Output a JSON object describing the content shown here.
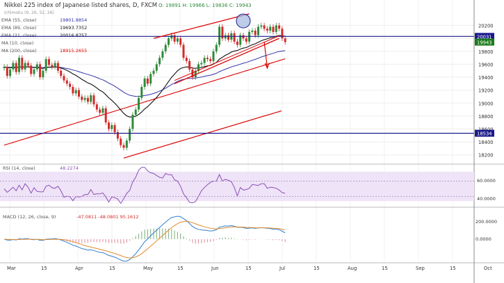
{
  "header": {
    "title": "Nikkei 225 index of Japanese listed shares, D, FXCM",
    "ohlc": "O: 19891 H: 19966 L: 19836 C: 19943",
    "series_label": "Ichimoku (9, 26, 52, 26)"
  },
  "indicators": [
    {
      "label": "EMA (55, close)",
      "value": "19801.8854",
      "color": "#3333aa"
    },
    {
      "label": "EMA (89, close)",
      "value": "19693.7352",
      "color": "#1a1a1a"
    },
    {
      "label": "EMA (21, close)",
      "value": "20016.8757",
      "color": "#111111"
    },
    {
      "label": "MA (10, close)",
      "value": "",
      "color": "#999999"
    },
    {
      "label": "MA (200, close)",
      "value": "18915.2655",
      "color": "#dd0000"
    }
  ],
  "price_axis": {
    "ticks": [
      "20200",
      "20000",
      "19800",
      "19600",
      "19400",
      "19200",
      "19000",
      "18800",
      "18600",
      "18400",
      "18200"
    ],
    "price_labels": [
      {
        "value": "20031",
        "bg": "#1a1a8c",
        "fg": "#ffffff"
      },
      {
        "value": "19943",
        "bg": "#1a7a1a",
        "fg": "#ffffff"
      },
      {
        "value": "18534",
        "bg": "#1a1a8c",
        "fg": "#ffffff"
      }
    ]
  },
  "rsi": {
    "label": "RSI (14, close)",
    "value": "48.2274",
    "ticks": [
      "60.0000",
      "40.0000"
    ]
  },
  "macd": {
    "label": "MACD (12, 26, close, 9)",
    "values": "-47.0811  -48.0801  95.1612",
    "ticks": [
      "200.0000",
      "0.0000"
    ]
  },
  "time_axis": [
    "Mar",
    "15",
    "Apr",
    "15",
    "May",
    "15",
    "Jun",
    "15",
    "Jul",
    "15",
    "Aug",
    "15",
    "Sep",
    "15",
    "Oct"
  ],
  "colors": {
    "up": "#2e8b3a",
    "down": "#d42a2a",
    "hline": "#1a1a8c",
    "rsi_band": "#efe3f7"
  },
  "chart_data": {
    "type": "candlestick",
    "title": "Nikkei 225 index of Japanese listed shares, D, FXCM",
    "ylim": [
      18100,
      20400
    ],
    "horizontal_levels": [
      20031,
      18534
    ],
    "close": [
      19560,
      19420,
      19520,
      19620,
      19480,
      19700,
      19520,
      19620,
      19580,
      19450,
      19520,
      19600,
      19400,
      19500,
      19680,
      19590,
      19560,
      19620,
      19500,
      19420,
      19350,
      19300,
      19250,
      19150,
      19200,
      19100,
      19050,
      19080,
      19020,
      19120,
      18980,
      18900,
      18850,
      18920,
      18700,
      18600,
      18660,
      18550,
      18450,
      18350,
      18310,
      18420,
      18600,
      18820,
      18900,
      19080,
      19250,
      19380,
      19300,
      19450,
      19500,
      19600,
      19700,
      19800,
      19900,
      20000,
      20050,
      19950,
      20000,
      19900,
      19700,
      19650,
      19520,
      19400,
      19500,
      19600,
      19620,
      19700,
      19680,
      19650,
      19800,
      19900,
      20180,
      20000,
      20050,
      19980,
      20080,
      19950,
      19900,
      20050,
      20000,
      19950,
      20100,
      20120,
      20050,
      20180,
      20200,
      20150,
      20120,
      20180,
      20100,
      20200,
      20150,
      20000,
      19943
    ]
  }
}
